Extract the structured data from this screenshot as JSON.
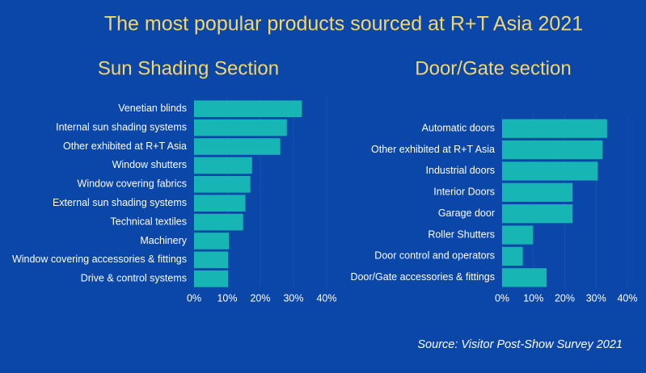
{
  "title": "The most popular products sourced at R+T Asia 2021",
  "source": "Source: Visitor Post-Show Survey 2021",
  "chart_data": [
    {
      "type": "bar",
      "title": "Sun Shading Section",
      "categories": [
        "Venetian blinds",
        "Internal sun shading systems",
        "Other exhibited at R+T Asia",
        "Window shutters",
        "Window covering fabrics",
        "External sun shading systems",
        "Technical textiles",
        "Machinery",
        "Window covering accessories & fittings",
        "Drive & control systems"
      ],
      "values": [
        32.5,
        28,
        26,
        17.5,
        17,
        15.5,
        14.8,
        10.5,
        10.3,
        10.3
      ],
      "color": "#17b6b4",
      "xlim": [
        0,
        40
      ],
      "xticks": [
        {
          "value": 0,
          "label": "0%"
        },
        {
          "value": 10,
          "label": "10%"
        },
        {
          "value": 20,
          "label": "20%"
        },
        {
          "value": 30,
          "label": "30%"
        },
        {
          "value": 40,
          "label": "40%"
        }
      ]
    },
    {
      "type": "bar",
      "title": "Door/Gate section",
      "categories": [
        "Automatic doors",
        "Other exhibited at R+T Asia",
        "Industrial doors",
        "Interior Doors",
        "Garage door",
        "Roller Shutters",
        "Door control and operators",
        "Door/Gate accessories & fittings"
      ],
      "values": [
        33.5,
        32,
        30.5,
        22.5,
        22.5,
        9.8,
        6.6,
        14.2
      ],
      "color": "#17b6b4",
      "xlim": [
        0,
        40
      ],
      "xticks": [
        {
          "value": 0,
          "label": "0%"
        },
        {
          "value": 10,
          "label": "10%"
        },
        {
          "value": 20,
          "label": "20%"
        },
        {
          "value": 30,
          "label": "30%"
        },
        {
          "value": 40,
          "label": "40%"
        }
      ]
    }
  ]
}
